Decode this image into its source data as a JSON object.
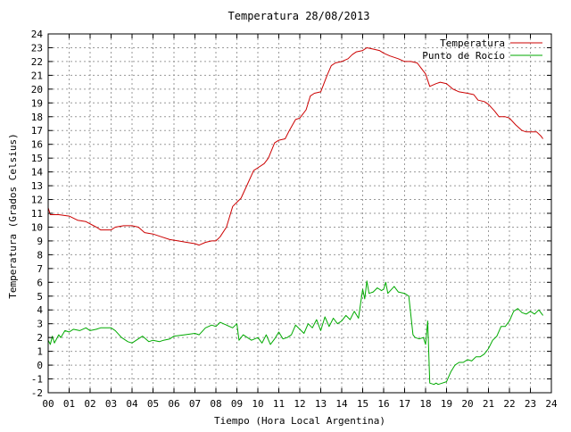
{
  "chart_data": {
    "type": "line",
    "title": "Temperatura 28/08/2013",
    "xlabel": "Tiempo (Hora Local Argentina)",
    "ylabel": "Temperatura (Grados Celsius)",
    "xlim": [
      0,
      24
    ],
    "ylim": [
      -2,
      24
    ],
    "x_ticks": [
      "00",
      "01",
      "02",
      "03",
      "04",
      "05",
      "06",
      "07",
      "08",
      "09",
      "10",
      "11",
      "12",
      "13",
      "14",
      "15",
      "16",
      "17",
      "18",
      "19",
      "20",
      "21",
      "22",
      "23",
      "24"
    ],
    "y_ticks": [
      "-2",
      "-1",
      "0",
      "1",
      "2",
      "3",
      "4",
      "5",
      "6",
      "7",
      "8",
      "9",
      "10",
      "11",
      "12",
      "13",
      "14",
      "15",
      "16",
      "17",
      "18",
      "19",
      "20",
      "21",
      "22",
      "23",
      "24"
    ],
    "grid": true,
    "legend_position": "top-right",
    "colors": {
      "temperatura": "#cc0000",
      "punto_rocio": "#00aa00",
      "grid": "#9a9a9a"
    },
    "series": [
      {
        "name": "Temperatura",
        "color": "#cc0000",
        "x": [
          0.0,
          0.1,
          0.5,
          1.0,
          1.4,
          1.8,
          2.3,
          2.5,
          3.0,
          3.2,
          3.6,
          4.0,
          4.3,
          4.6,
          5.0,
          5.4,
          5.8,
          6.2,
          6.6,
          7.0,
          7.2,
          7.5,
          7.8,
          8.0,
          8.2,
          8.5,
          8.8,
          9.0,
          9.2,
          9.5,
          9.8,
          10.0,
          10.3,
          10.5,
          10.8,
          11.0,
          11.3,
          11.5,
          11.8,
          12.0,
          12.3,
          12.5,
          12.7,
          13.0,
          13.3,
          13.5,
          13.7,
          14.0,
          14.3,
          14.5,
          14.7,
          15.0,
          15.2,
          15.5,
          15.8,
          16.0,
          16.3,
          16.7,
          17.0,
          17.3,
          17.6,
          17.8,
          18.0,
          18.2,
          18.5,
          18.7,
          19.0,
          19.3,
          19.6,
          20.0,
          20.3,
          20.5,
          20.8,
          21.0,
          21.3,
          21.5,
          21.8,
          22.0,
          22.3,
          22.6,
          22.8,
          23.0,
          23.3,
          23.5,
          23.6
        ],
        "values": [
          11.4,
          10.9,
          10.9,
          10.8,
          10.5,
          10.4,
          10.0,
          9.8,
          9.8,
          10.0,
          10.1,
          10.1,
          10.0,
          9.6,
          9.5,
          9.3,
          9.1,
          9.0,
          8.9,
          8.8,
          8.7,
          8.9,
          9.0,
          9.0,
          9.3,
          10.0,
          11.5,
          11.8,
          12.1,
          13.1,
          14.1,
          14.3,
          14.6,
          15.0,
          16.1,
          16.3,
          16.4,
          17.0,
          17.8,
          17.9,
          18.5,
          19.5,
          19.7,
          19.8,
          21.0,
          21.7,
          21.9,
          22.0,
          22.2,
          22.5,
          22.7,
          22.8,
          23.0,
          22.9,
          22.8,
          22.6,
          22.4,
          22.2,
          22.0,
          22.0,
          21.9,
          21.5,
          21.1,
          20.2,
          20.4,
          20.5,
          20.4,
          20.0,
          19.8,
          19.7,
          19.6,
          19.2,
          19.1,
          18.9,
          18.4,
          18.0,
          18.0,
          17.9,
          17.4,
          17.0,
          16.9,
          16.9,
          16.9,
          16.6,
          16.4
        ]
      },
      {
        "name": "Punto de Rocío",
        "color": "#00aa00",
        "x": [
          0.0,
          0.1,
          0.2,
          0.3,
          0.5,
          0.6,
          0.8,
          1.0,
          1.2,
          1.5,
          1.8,
          2.0,
          2.3,
          2.5,
          3.0,
          3.2,
          3.5,
          3.8,
          4.0,
          4.2,
          4.5,
          4.8,
          5.0,
          5.3,
          5.5,
          5.8,
          6.0,
          6.5,
          7.0,
          7.2,
          7.5,
          7.8,
          8.0,
          8.2,
          8.5,
          8.8,
          9.0,
          9.1,
          9.3,
          9.5,
          9.7,
          10.0,
          10.2,
          10.4,
          10.6,
          10.8,
          11.0,
          11.2,
          11.4,
          11.6,
          11.8,
          12.0,
          12.2,
          12.4,
          12.6,
          12.8,
          13.0,
          13.2,
          13.4,
          13.6,
          13.8,
          14.0,
          14.2,
          14.4,
          14.6,
          14.8,
          15.0,
          15.1,
          15.2,
          15.3,
          15.5,
          15.7,
          15.9,
          16.0,
          16.1,
          16.2,
          16.5,
          16.7,
          17.0,
          17.2,
          17.4,
          17.5,
          17.7,
          17.9,
          18.0,
          18.1,
          18.2,
          18.4,
          18.5,
          18.6,
          18.8,
          19.0,
          19.2,
          19.4,
          19.6,
          19.8,
          20.0,
          20.2,
          20.4,
          20.6,
          20.8,
          21.0,
          21.2,
          21.4,
          21.6,
          21.8,
          22.0,
          22.2,
          22.4,
          22.6,
          22.8,
          23.0,
          23.2,
          23.4,
          23.6
        ],
        "values": [
          1.8,
          1.5,
          2.1,
          1.6,
          2.2,
          2.0,
          2.5,
          2.4,
          2.6,
          2.5,
          2.7,
          2.5,
          2.6,
          2.7,
          2.7,
          2.5,
          2.0,
          1.7,
          1.6,
          1.8,
          2.1,
          1.7,
          1.8,
          1.7,
          1.8,
          1.9,
          2.1,
          2.2,
          2.3,
          2.2,
          2.7,
          2.9,
          2.8,
          3.1,
          2.9,
          2.7,
          3.0,
          1.8,
          2.2,
          2.0,
          1.8,
          2.0,
          1.6,
          2.2,
          1.5,
          1.9,
          2.4,
          1.9,
          2.0,
          2.2,
          2.9,
          2.6,
          2.3,
          3.0,
          2.7,
          3.3,
          2.5,
          3.5,
          2.8,
          3.4,
          3.0,
          3.2,
          3.6,
          3.3,
          3.9,
          3.4,
          5.5,
          4.8,
          6.1,
          5.2,
          5.3,
          5.6,
          5.4,
          5.5,
          6.0,
          5.2,
          5.7,
          5.3,
          5.2,
          5.0,
          2.2,
          2.0,
          1.9,
          2.0,
          1.5,
          3.2,
          -1.3,
          -1.4,
          -1.3,
          -1.4,
          -1.3,
          -1.2,
          -0.5,
          0.0,
          0.2,
          0.2,
          0.4,
          0.3,
          0.6,
          0.6,
          0.8,
          1.2,
          1.8,
          2.1,
          2.8,
          2.8,
          3.2,
          3.9,
          4.1,
          3.8,
          3.7,
          3.9,
          3.7,
          4.0,
          3.6
        ]
      }
    ]
  }
}
